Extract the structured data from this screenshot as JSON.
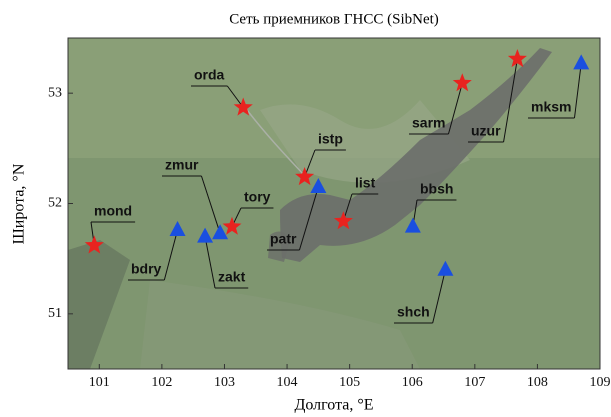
{
  "chart_data": {
    "type": "scatter",
    "title": "Сеть приемников ГНСС (SibNet)",
    "x_label": "Долгота, °E",
    "y_label": "Широта, °N",
    "xlim": [
      100.5,
      109
    ],
    "ylim": [
      50.5,
      53.5
    ],
    "xticks": [
      101,
      102,
      103,
      104,
      105,
      106,
      107,
      108,
      109
    ],
    "yticks": [
      51,
      52,
      53
    ],
    "series": [
      {
        "marker": "star",
        "color": "#e8231f",
        "labels": [
          "mond",
          "orda",
          "istp",
          "list",
          "tory",
          "sarm",
          "uzur"
        ],
        "x": [
          100.92,
          103.3,
          104.28,
          104.9,
          103.12,
          106.8,
          107.68
        ],
        "values": [
          51.62,
          52.87,
          52.24,
          51.84,
          51.79,
          53.09,
          53.31
        ]
      },
      {
        "marker": "triangle",
        "color": "#1a4fe0",
        "labels": [
          "bdry",
          "zakt",
          "zmur",
          "patr",
          "bbsh",
          "shch",
          "mksm"
        ],
        "x": [
          102.25,
          102.69,
          102.93,
          104.5,
          106.01,
          106.53,
          108.7
        ],
        "values": [
          51.76,
          51.7,
          51.73,
          52.15,
          51.79,
          51.4,
          53.27
        ]
      }
    ]
  }
}
